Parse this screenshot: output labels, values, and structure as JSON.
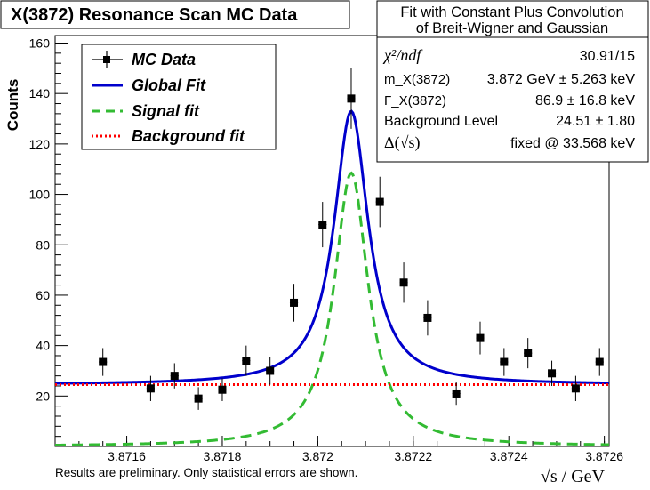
{
  "chart_data": {
    "type": "scatter",
    "title": "X(3872) Resonance Scan MC Data",
    "ylabel": "Counts",
    "xlabel": "√s / GeV",
    "xlim": [
      3.87145,
      3.87261
    ],
    "ylim": [
      0,
      163
    ],
    "x_ticks": [
      {
        "value": 3.8716,
        "label": "3.8716"
      },
      {
        "value": 3.8718,
        "label": "3.8718"
      },
      {
        "value": 3.872,
        "label": "3.872"
      },
      {
        "value": 3.8722,
        "label": "3.8722"
      },
      {
        "value": 3.8724,
        "label": "3.8724"
      },
      {
        "value": 3.8726,
        "label": "3.8726"
      }
    ],
    "y_ticks": [
      20,
      40,
      60,
      80,
      100,
      120,
      140,
      160
    ],
    "series": [
      {
        "name": "MC Data",
        "kind": "points",
        "x_err": 8.5e-06,
        "points": [
          {
            "x": 3.87155,
            "y": 33.5,
            "err": 5.5
          },
          {
            "x": 3.87165,
            "y": 23.0,
            "err": 5.0
          },
          {
            "x": 3.8717,
            "y": 28.0,
            "err": 5.0
          },
          {
            "x": 3.87175,
            "y": 19.0,
            "err": 4.5
          },
          {
            "x": 3.8718,
            "y": 22.5,
            "err": 4.5
          },
          {
            "x": 3.87185,
            "y": 34.0,
            "err": 6.0
          },
          {
            "x": 3.8719,
            "y": 30.0,
            "err": 5.5
          },
          {
            "x": 3.87195,
            "y": 57.0,
            "err": 7.5
          },
          {
            "x": 3.87201,
            "y": 88.0,
            "err": 9.0
          },
          {
            "x": 3.87207,
            "y": 138.0,
            "err": 12.0
          },
          {
            "x": 3.87213,
            "y": 97.0,
            "err": 10.0
          },
          {
            "x": 3.87218,
            "y": 65.0,
            "err": 8.0
          },
          {
            "x": 3.87223,
            "y": 51.0,
            "err": 7.0
          },
          {
            "x": 3.87229,
            "y": 21.0,
            "err": 4.5
          },
          {
            "x": 3.87234,
            "y": 43.0,
            "err": 6.5
          },
          {
            "x": 3.87239,
            "y": 33.5,
            "err": 5.5
          },
          {
            "x": 3.87244,
            "y": 37.0,
            "err": 6.0
          },
          {
            "x": 3.87249,
            "y": 29.0,
            "err": 5.0
          },
          {
            "x": 3.87254,
            "y": 23.0,
            "err": 5.0
          },
          {
            "x": 3.87259,
            "y": 33.5,
            "err": 5.5
          }
        ]
      },
      {
        "name": "Global Fit",
        "kind": "curve",
        "color": "#0000cc",
        "style": "solid",
        "model": {
          "center": 3.87207,
          "peak": 108.5,
          "hwhm": 4.35e-05,
          "background": 24.5
        }
      },
      {
        "name": "Signal fit",
        "kind": "curve",
        "color": "#33bb33",
        "style": "dashed",
        "model": {
          "center": 3.87207,
          "peak": 108.5,
          "hwhm": 4.35e-05,
          "background": 0
        }
      },
      {
        "name": "Background fit",
        "kind": "curve",
        "color": "#ff0000",
        "style": "dotted",
        "model": {
          "constant": 24.5
        }
      }
    ],
    "legend": {
      "placement": "top-left",
      "entries": [
        "MC Data",
        "Global Fit",
        "Signal fit",
        "Background fit"
      ]
    },
    "stats_box": {
      "placement": "top-right",
      "header_line1": "Fit with Constant Plus Convolution",
      "header_line2": "of Breit-Wigner and Gaussian",
      "rows": [
        {
          "label": "χ²/ndf",
          "value": "30.91/15"
        },
        {
          "label": "m_X(3872)",
          "value": "3.872 GeV ± 5.263 keV"
        },
        {
          "label": "Γ_X(3872)",
          "value": "86.9 ± 16.8  keV"
        },
        {
          "label": "Background Level",
          "value": "24.51 ± 1.80"
        },
        {
          "label": "Δ(√s)",
          "value": "fixed @ 33.568  keV"
        }
      ]
    }
  },
  "footnote": "Results are preliminary. Only statistical errors are shown."
}
